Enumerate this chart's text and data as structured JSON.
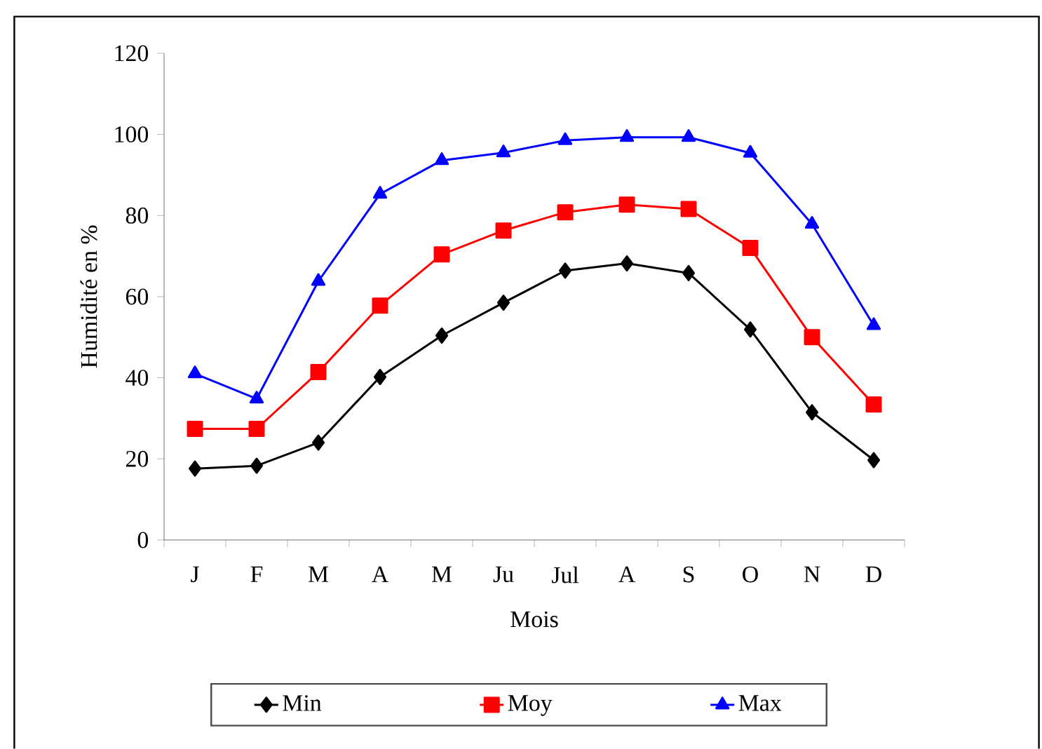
{
  "chart_data": {
    "type": "line",
    "xlabel": "Mois",
    "ylabel": "Humidité en %",
    "categories": [
      "J",
      "F",
      "M",
      "A",
      "M",
      "Ju",
      "Jul",
      "A",
      "S",
      "O",
      "N",
      "D"
    ],
    "series": [
      {
        "name": "Min",
        "color": "#000000",
        "marker": "diamond",
        "values": [
          17.6,
          18.3,
          24,
          40.2,
          50.4,
          58.5,
          66.4,
          68.2,
          65.8,
          51.9,
          31.5,
          19.7
        ]
      },
      {
        "name": "Moy",
        "color": "#ff0000",
        "marker": "square",
        "values": [
          27.4,
          27.4,
          41.4,
          57.8,
          70.4,
          76.3,
          80.8,
          82.7,
          81.6,
          72,
          50,
          33.4
        ]
      },
      {
        "name": "Max",
        "color": "#0000ff",
        "marker": "triangle",
        "values": [
          41,
          34.8,
          63.8,
          85.3,
          93.6,
          95.5,
          98.5,
          99.3,
          99.3,
          95.4,
          77.9,
          52.9
        ]
      }
    ],
    "ylim": [
      0,
      120
    ],
    "yticks": [
      0,
      20,
      40,
      60,
      80,
      100,
      120
    ],
    "grid": false,
    "legend": "bottom",
    "line_style": "solid"
  }
}
